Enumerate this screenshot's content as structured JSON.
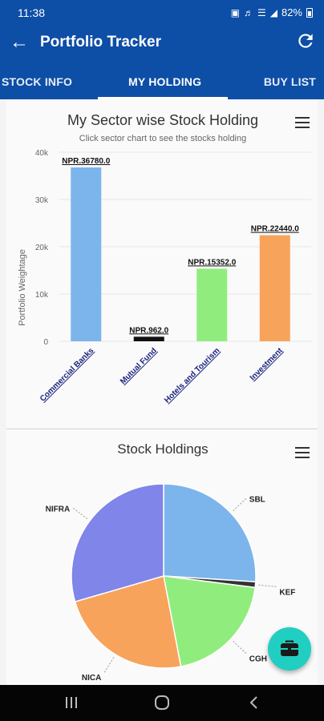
{
  "status_bar": {
    "time": "11:38",
    "battery": "82%"
  },
  "app_bar": {
    "title": "Portfolio Tracker"
  },
  "tabs": [
    {
      "label": "STOCK INFO",
      "active": false
    },
    {
      "label": "MY HOLDING",
      "active": true
    },
    {
      "label": "BUY LIST",
      "active": false
    }
  ],
  "sector_chart": {
    "title": "My Sector wise Stock Holding",
    "subtitle": "Click sector chart to see the stocks holding"
  },
  "stock_chart": {
    "title": "Stock Holdings"
  },
  "colors": {
    "primary": "#0d4ea6",
    "fab": "#20cfc1"
  },
  "chart_data": [
    {
      "type": "bar",
      "title": "My Sector wise Stock Holding",
      "subtitle": "Click sector chart to see the stocks holding",
      "ylabel": "Portfolio Weightage",
      "xlabel": "",
      "ylim": [
        0,
        40000
      ],
      "yticks": [
        "0",
        "10k",
        "20k",
        "30k",
        "40k"
      ],
      "grid": true,
      "categories": [
        "Commercial Banks",
        "Mutual Fund",
        "Hotels and Tourism",
        "Investment"
      ],
      "values": [
        36780,
        962,
        15352,
        22440
      ],
      "data_labels": [
        "NPR.36780.0",
        "NPR.962.0",
        "NPR.15352.0",
        "NPR.22440.0"
      ],
      "colors": [
        "#7cb5ec",
        "#111111",
        "#90ed7d",
        "#f7a35c"
      ]
    },
    {
      "type": "pie",
      "title": "Stock Holdings",
      "labels": [
        "SBL",
        "KEF",
        "CGH",
        "NICA",
        "NIFRA"
      ],
      "values": [
        26.0,
        1.0,
        20.0,
        23.5,
        29.5
      ],
      "colors": [
        "#7cb5ec",
        "#333333",
        "#90ed7d",
        "#f7a35c",
        "#8085e9"
      ]
    }
  ]
}
